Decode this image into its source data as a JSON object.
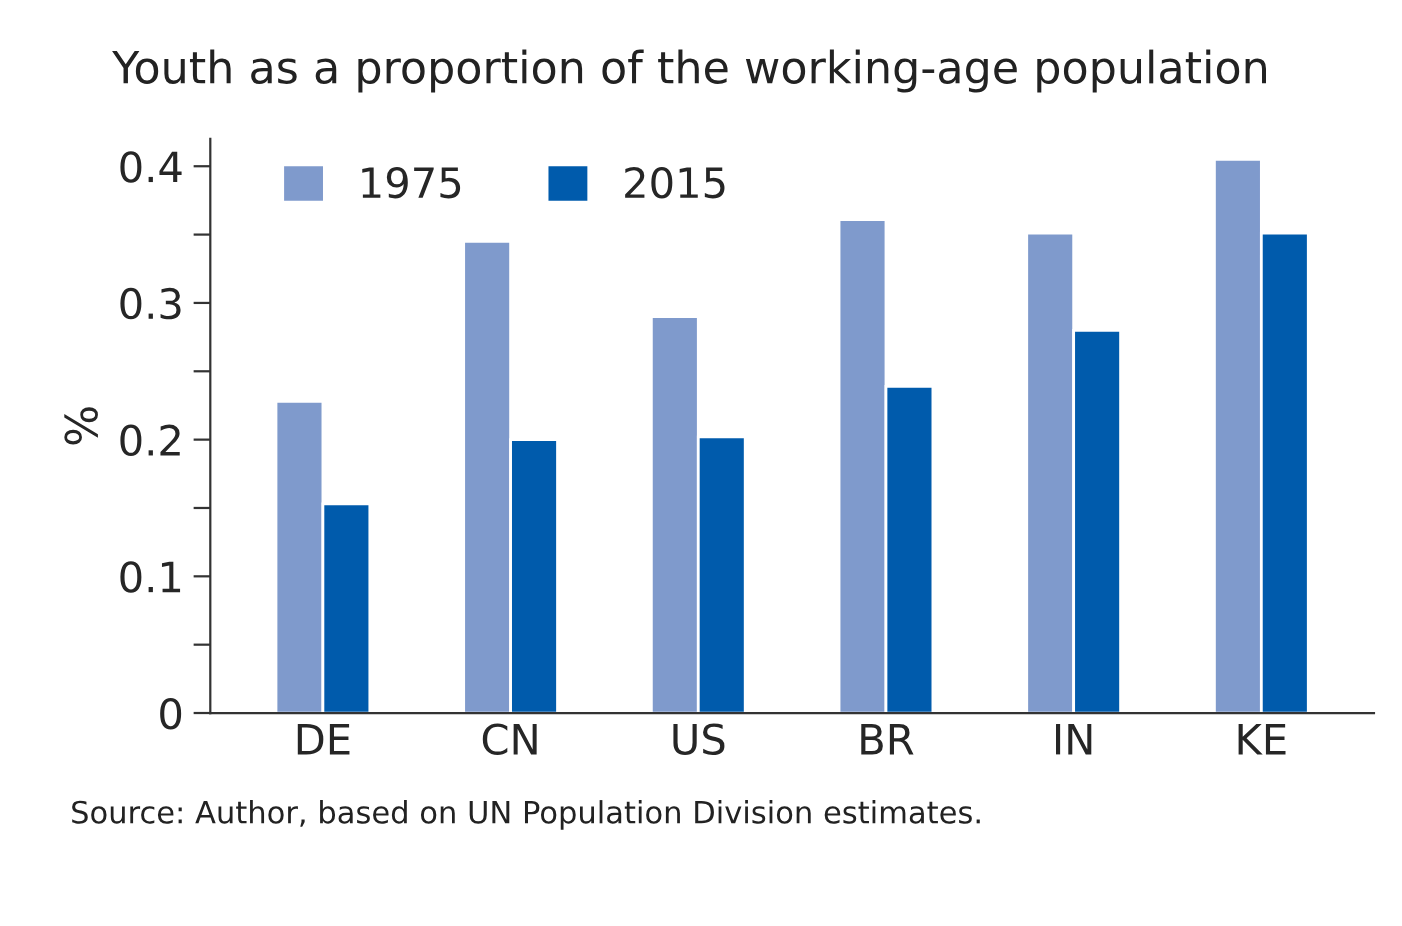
{
  "chart_data": {
    "type": "bar",
    "title": "Youth as a proportion of the working-age population",
    "ylabel": "%",
    "categories": [
      "DE",
      "CN",
      "US",
      "BR",
      "IN",
      "KE"
    ],
    "series": [
      {
        "name": "1975",
        "color": "#7f9acc",
        "values": [
          0.228,
          0.345,
          0.29,
          0.361,
          0.351,
          0.405
        ]
      },
      {
        "name": "2015",
        "color": "#005bac",
        "values": [
          0.153,
          0.2,
          0.202,
          0.239,
          0.28,
          0.351
        ]
      }
    ],
    "ylim": [
      0,
      0.42
    ],
    "yticks": [
      0,
      {
        "value": 0.05,
        "label": null
      },
      0.1,
      {
        "value": 0.15,
        "label": null
      },
      0.2,
      {
        "value": 0.25,
        "label": null
      },
      0.3,
      {
        "value": 0.35,
        "label": null
      },
      0.4
    ],
    "grid": false,
    "legend": "top left",
    "annotations": [
      "Source: Author, based on UN Population Division estimates."
    ]
  }
}
